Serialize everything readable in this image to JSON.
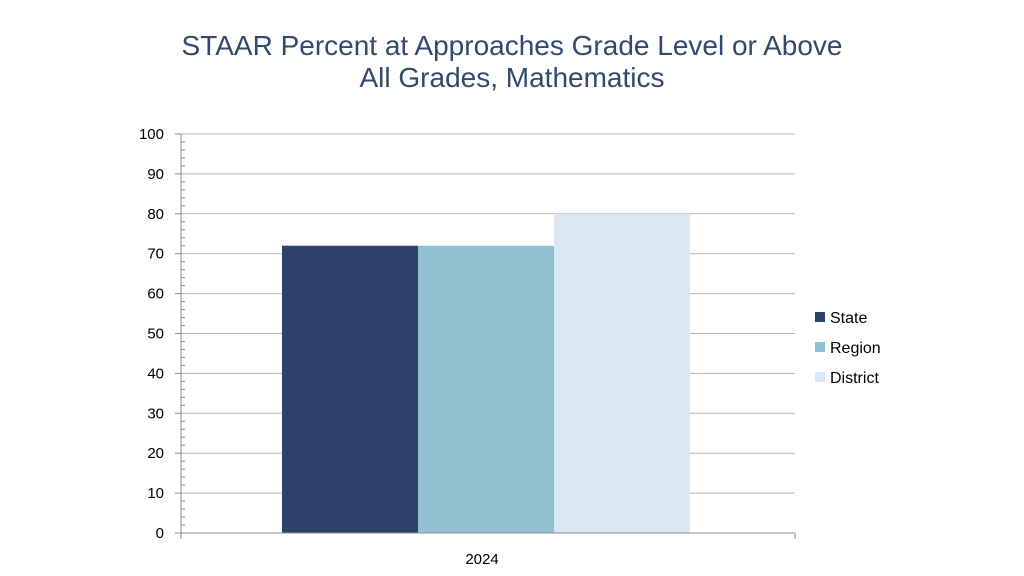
{
  "chart_data": {
    "type": "bar",
    "title": "STAAR Percent at Approaches Grade Level or Above",
    "subtitle": "All Grades, Mathematics",
    "categories": [
      "2024"
    ],
    "series": [
      {
        "name": "State",
        "values": [
          72
        ],
        "color": "#2f4269"
      },
      {
        "name": "Region",
        "values": [
          72
        ],
        "color": "#93bfd3"
      },
      {
        "name": "District",
        "values": [
          80
        ],
        "color": "#d9e8f4"
      }
    ],
    "ylim": [
      0,
      100
    ],
    "y_ticks": [
      "0",
      "10",
      "20",
      "30",
      "40",
      "50",
      "60",
      "70",
      "80",
      "90",
      "100"
    ],
    "grid": true,
    "legend": "right"
  },
  "colors": {
    "title": "#2f4a6d",
    "gridline": "#b3b3b3",
    "axis": "#8c8c8c"
  }
}
